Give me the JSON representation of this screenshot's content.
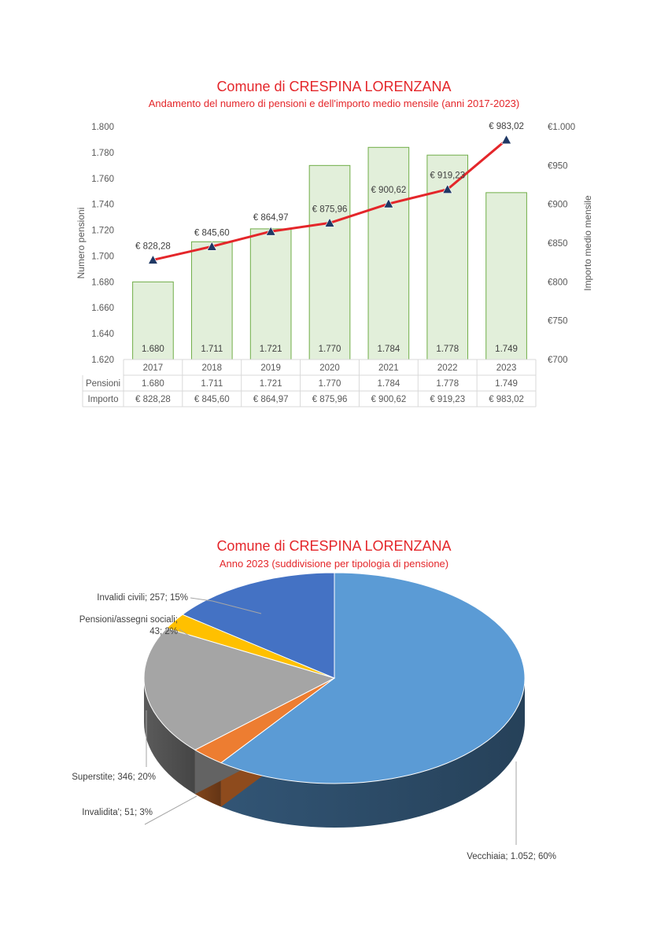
{
  "chart_data": [
    {
      "type": "bar",
      "title": "Comune di CRESPINA LORENZANA",
      "subtitle": "Andamento del numero di pensioni e dell'importo medio mensile (anni 2017-2023)",
      "categories": [
        "2017",
        "2018",
        "2019",
        "2020",
        "2021",
        "2022",
        "2023"
      ],
      "series": [
        {
          "name": "Pensioni",
          "type": "bar",
          "axis": "left",
          "values": [
            1680,
            1711,
            1721,
            1770,
            1784,
            1778,
            1749
          ],
          "labels": [
            "1.680",
            "1.711",
            "1.721",
            "1.770",
            "1.784",
            "1.778",
            "1.749"
          ]
        },
        {
          "name": "Importo",
          "type": "line",
          "axis": "right",
          "values": [
            828.28,
            845.6,
            864.97,
            875.96,
            900.62,
            919.23,
            983.02
          ],
          "labels": [
            "€ 828,28",
            "€ 845,60",
            "€ 864,97",
            "€ 875,96",
            "€ 900,62",
            "€ 919,23",
            "€ 983,02"
          ]
        }
      ],
      "ylabel": "Numero pensioni",
      "y2label": "Importo medio mensile",
      "ylim": [
        1620,
        1800
      ],
      "y2lim": [
        700,
        1000
      ],
      "yticks": [
        "1.620",
        "1.640",
        "1.660",
        "1.680",
        "1.700",
        "1.720",
        "1.740",
        "1.760",
        "1.780",
        "1.800"
      ],
      "y2ticks": [
        "€700",
        "€750",
        "€800",
        "€850",
        "€900",
        "€950",
        "€1.000"
      ],
      "data_table_row_labels": [
        "Pensioni",
        "Importo"
      ],
      "colors": {
        "bar_fill": "#e2efda",
        "bar_stroke": "#70ad47",
        "line": "#e4262a",
        "marker": "#1f3864",
        "title": "#e4262a"
      }
    },
    {
      "type": "pie",
      "title": "Comune di CRESPINA LORENZANA",
      "subtitle": "Anno 2023 (suddivisione per tipologia di pensione)",
      "style": "3d",
      "slices": [
        {
          "name": "Vecchiaia",
          "value": 1052,
          "percent": "60%",
          "label": "Vecchiaia; 1.052; 60%",
          "color": "#5b9bd5"
        },
        {
          "name": "Invalidita'",
          "value": 51,
          "percent": "3%",
          "label": "Invalidita'; 51; 3%",
          "color": "#ed7d31"
        },
        {
          "name": "Superstite",
          "value": 346,
          "percent": "20%",
          "label": "Superstite; 346; 20%",
          "color": "#a5a5a5"
        },
        {
          "name": "Pensioni/assegni sociali",
          "value": 43,
          "percent": "2%",
          "label_lines": [
            "Pensioni/assegni sociali;",
            "43; 2%"
          ],
          "color": "#ffc000"
        },
        {
          "name": "Invalidi civili",
          "value": 257,
          "percent": "15%",
          "label": "Invalidi civili; 257; 15%",
          "color": "#4472c4"
        }
      ]
    }
  ]
}
